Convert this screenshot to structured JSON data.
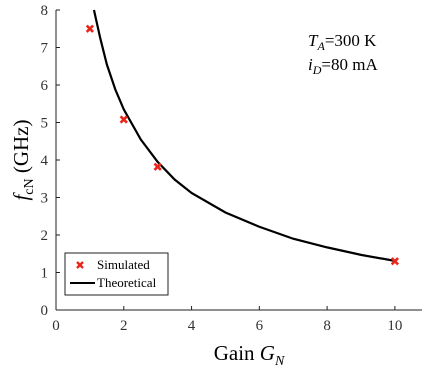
{
  "chart_data": {
    "type": "line",
    "xlabel": {
      "main": "Gain ",
      "var": "G",
      "sub": "N"
    },
    "ylabel": {
      "var": "f",
      "sub": "cN",
      "unit": "  (GHz)"
    },
    "xlim": [
      0,
      10.8
    ],
    "ylim": [
      0,
      8
    ],
    "xticks": [
      "0",
      "2",
      "4",
      "6",
      "8",
      "10"
    ],
    "yticks": [
      "0",
      "1",
      "2",
      "3",
      "4",
      "5",
      "6",
      "7",
      "8"
    ],
    "annotations": [
      {
        "var": "T",
        "sub": "A",
        "text": "=300 K"
      },
      {
        "var": "i",
        "sub": "D",
        "text": "=80 mA"
      }
    ],
    "legend_position": "bottom-left",
    "series": [
      {
        "name": "Simulated",
        "kind": "scatter",
        "marker": "x",
        "color": "#e8261c",
        "x": [
          1,
          2,
          3,
          10
        ],
        "y": [
          7.5,
          5.08,
          3.82,
          1.3
        ]
      },
      {
        "name": "Theoretical",
        "kind": "line",
        "color": "#000000",
        "x": [
          1.12,
          1.3,
          1.5,
          1.75,
          2,
          2.5,
          3,
          3.5,
          4,
          5,
          6,
          7,
          8,
          9,
          10
        ],
        "y": [
          8.0,
          7.27,
          6.55,
          5.88,
          5.35,
          4.55,
          3.95,
          3.48,
          3.12,
          2.6,
          2.22,
          1.9,
          1.67,
          1.47,
          1.31
        ]
      }
    ],
    "grid": false
  }
}
